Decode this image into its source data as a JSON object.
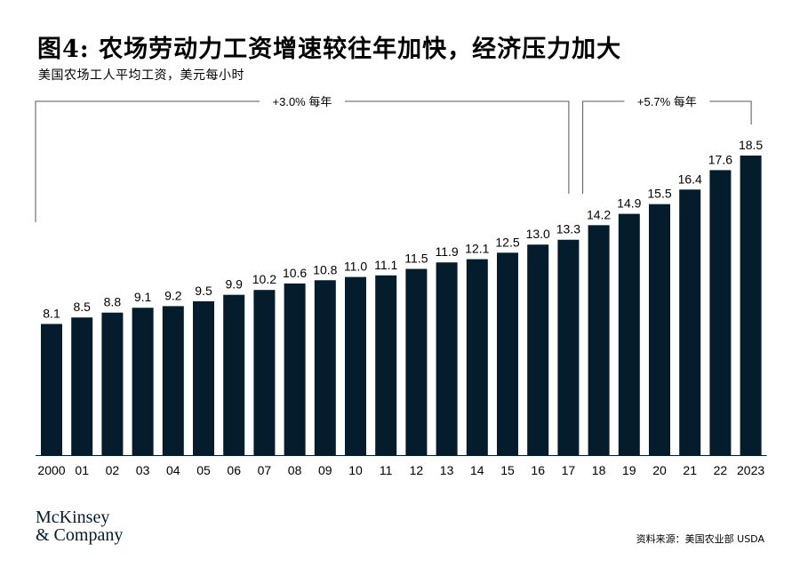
{
  "title": "图4: 农场劳动力工资增速较往年加快，经济压力加大",
  "subtitle": "美国农场工人平均工资，美元每小时",
  "chart_data": {
    "type": "bar",
    "categories": [
      "2000",
      "01",
      "02",
      "03",
      "04",
      "05",
      "06",
      "07",
      "08",
      "09",
      "10",
      "11",
      "12",
      "13",
      "14",
      "15",
      "16",
      "17",
      "18",
      "19",
      "20",
      "21",
      "22",
      "2023"
    ],
    "values": [
      8.1,
      8.5,
      8.8,
      9.1,
      9.2,
      9.5,
      9.9,
      10.2,
      10.6,
      10.8,
      11.0,
      11.1,
      11.5,
      11.9,
      12.1,
      12.5,
      13.0,
      13.3,
      14.2,
      14.9,
      15.5,
      16.4,
      17.6,
      18.5
    ],
    "value_labels": [
      "8.1",
      "8.5",
      "8.8",
      "9.1",
      "9.2",
      "9.5",
      "9.9",
      "10.2",
      "10.6",
      "10.8",
      "11.0",
      "11.1",
      "11.5",
      "11.9",
      "12.1",
      "12.5",
      "13.0",
      "13.3",
      "14.2",
      "14.9",
      "15.5",
      "16.4",
      "17.6",
      "18.5"
    ],
    "ylim": [
      0,
      18.5
    ],
    "bar_color": "#051c2c",
    "grid": false,
    "annotations": [
      {
        "text": "+3.0% 每年",
        "from_category": "2000",
        "to_category": "17"
      },
      {
        "text": "+5.7% 每年",
        "from_category": "18",
        "to_category": "2023"
      }
    ]
  },
  "logo": {
    "line1": "McKinsey",
    "line2": "& Company"
  },
  "source": "资料来源：美国农业部 USDA"
}
